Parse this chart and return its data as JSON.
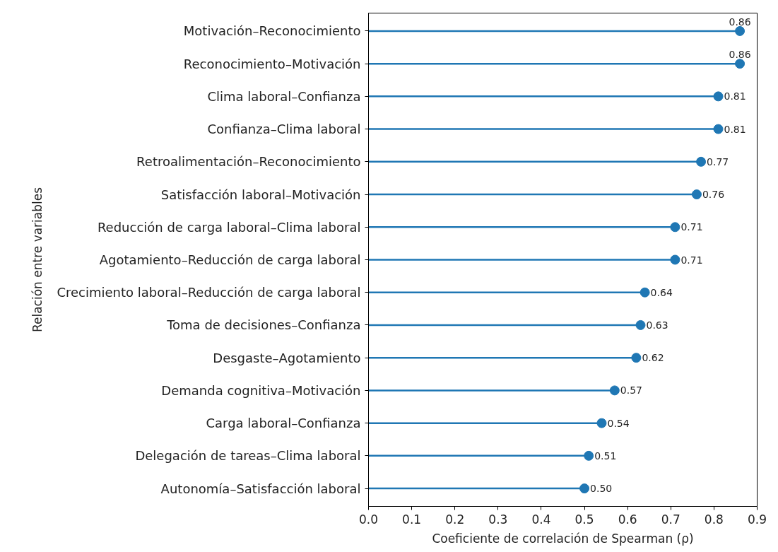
{
  "chart_data": {
    "type": "lollipop",
    "orientation": "horizontal",
    "categories": [
      "Motivación–Reconocimiento",
      "Reconocimiento–Motivación",
      "Clima laboral–Confianza",
      "Confianza–Clima laboral",
      "Retroalimentación–Reconocimiento",
      "Satisfacción laboral–Motivación",
      "Reducción de carga laboral–Clima laboral",
      "Agotamiento–Reducción de carga laboral",
      "Crecimiento laboral–Reducción de carga laboral",
      "Toma de decisiones–Confianza",
      "Desgaste–Agotamiento",
      "Demanda cognitiva–Motivación",
      "Carga laboral–Confianza",
      "Delegación de tareas–Clima laboral",
      "Autonomía–Satisfacción laboral"
    ],
    "values": [
      0.86,
      0.86,
      0.81,
      0.81,
      0.77,
      0.76,
      0.71,
      0.71,
      0.64,
      0.63,
      0.62,
      0.57,
      0.54,
      0.51,
      0.5
    ],
    "value_labels": [
      "0.86",
      "0.86",
      "0.81",
      "0.81",
      "0.77",
      "0.76",
      "0.71",
      "0.71",
      "0.64",
      "0.63",
      "0.62",
      "0.57",
      "0.54",
      "0.51",
      "0.50"
    ],
    "color": "#1f77b4",
    "marker": "circle",
    "xlim": [
      0,
      0.9
    ],
    "xticks": [
      {
        "value": 0,
        "label": "0.0"
      },
      0.1,
      0.2,
      0.3,
      0.4,
      0.5,
      0.6,
      0.7,
      0.8,
      0.9
    ],
    "xlabel": "Coeficiente de correlación de Spearman (ρ)",
    "ylabel": "Relación entre variables"
  }
}
